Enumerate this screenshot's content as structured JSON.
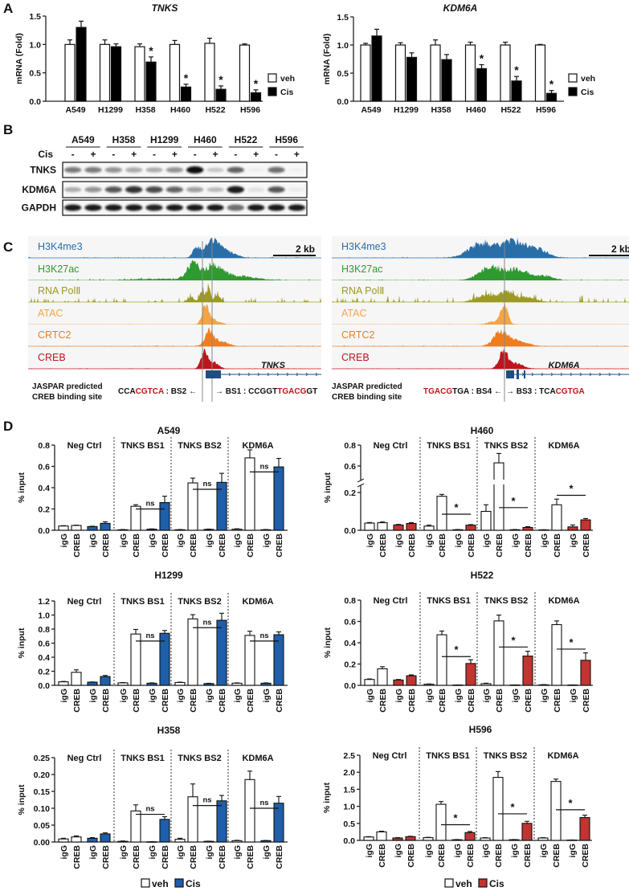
{
  "panel_labels": {
    "A": "A",
    "B": "B",
    "C": "C",
    "D": "D"
  },
  "colors": {
    "veh": "#ffffff",
    "cis_panelA": "#000000",
    "cis_blue": "#1f5ea8",
    "cis_red": "#c03530",
    "motif_red": "#c0141c"
  },
  "chart_data": [
    {
      "type": "bar",
      "title": "TNKS",
      "ylabel": "mRNA (Fold)",
      "ylim": [
        0,
        1.5
      ],
      "yticks": [
        0,
        0.5,
        1.0,
        1.5
      ],
      "ytick_labels": [
        "0.0",
        "0.5",
        "1.0",
        "1.5"
      ],
      "categories": [
        "A549",
        "H1299",
        "H358",
        "H460",
        "H522",
        "H596"
      ],
      "series": [
        {
          "name": "veh",
          "color": "#ffffff",
          "values": [
            1.0,
            1.0,
            0.96,
            1.0,
            1.02,
            0.99
          ],
          "errors": [
            0.08,
            0.08,
            0.05,
            0.07,
            0.09,
            0.02
          ]
        },
        {
          "name": "Cis",
          "color": "#000000",
          "values": [
            1.3,
            0.96,
            0.69,
            0.25,
            0.21,
            0.15
          ],
          "errors": [
            0.11,
            0.05,
            0.09,
            0.05,
            0.06,
            0.05
          ]
        }
      ],
      "significance": [
        "",
        "",
        "*",
        "*",
        "*",
        "*"
      ],
      "legend_position": "right"
    },
    {
      "type": "bar",
      "title": "KDM6A",
      "ylabel": "mRNA (Fold)",
      "ylim": [
        0,
        1.5
      ],
      "yticks": [
        0,
        0.5,
        1.0,
        1.5
      ],
      "ytick_labels": [
        "0.0",
        "0.5",
        "1.0",
        "1.5"
      ],
      "categories": [
        "A549",
        "H1299",
        "H358",
        "H460",
        "H522",
        "H596"
      ],
      "series": [
        {
          "name": "veh",
          "color": "#ffffff",
          "values": [
            1.0,
            1.0,
            1.0,
            1.0,
            1.0,
            1.0
          ],
          "errors": [
            0.03,
            0.04,
            0.09,
            0.05,
            0.05,
            0.01
          ]
        },
        {
          "name": "Cis",
          "color": "#000000",
          "values": [
            1.16,
            0.78,
            0.74,
            0.58,
            0.36,
            0.14
          ],
          "errors": [
            0.12,
            0.08,
            0.09,
            0.07,
            0.08,
            0.05
          ]
        }
      ],
      "significance": [
        "",
        "",
        "",
        "*",
        "*",
        "*"
      ],
      "legend_position": "right"
    },
    {
      "type": "bar",
      "title": "A549",
      "ylabel": "% input",
      "ylim": [
        0,
        0.8
      ],
      "yticks": [
        0,
        0.2,
        0.4,
        0.6,
        0.8
      ],
      "ytick_labels": [
        "0.0",
        "0.2",
        "0.4",
        "0.6",
        "0.8"
      ],
      "groups": [
        "Neg Ctrl",
        "TNKS BS1",
        "TNKS BS2",
        "KDM6A"
      ],
      "bar_labels": [
        "igG",
        "CREB"
      ],
      "series": [
        {
          "name": "veh",
          "color": "#ffffff",
          "values": [
            [
              0.04,
              0.045
            ],
            [
              0.005,
              0.225
            ],
            [
              0.005,
              0.445
            ],
            [
              0.01,
              0.68
            ]
          ],
          "errors": [
            [
              0.003,
              0.003
            ],
            [
              0.002,
              0.015
            ],
            [
              0.002,
              0.045
            ],
            [
              0.004,
              0.075
            ]
          ]
        },
        {
          "name": "Cis",
          "color": "#1f5ea8",
          "values": [
            [
              0.035,
              0.065
            ],
            [
              0.01,
              0.26
            ],
            [
              0.008,
              0.45
            ],
            [
              0.005,
              0.595
            ]
          ],
          "errors": [
            [
              0.003,
              0.015
            ],
            [
              0.003,
              0.06
            ],
            [
              0.003,
              0.085
            ],
            [
              0.002,
              0.08
            ]
          ]
        }
      ],
      "comparisons": [
        {
          "group": "TNKS BS1",
          "label": "ns",
          "y": 0.2
        },
        {
          "group": "TNKS BS2",
          "label": "ns",
          "y": 0.385
        },
        {
          "group": "KDM6A",
          "label": "ns",
          "y": 0.548
        }
      ]
    },
    {
      "type": "bar",
      "title": "H460",
      "ylabel": "% input",
      "ylim": [
        0,
        0.8
      ],
      "axis_break": [
        0.2,
        0.5
      ],
      "yticks": [
        0,
        0.2,
        0.6,
        0.8
      ],
      "ytick_labels": [
        "0.0",
        "0.2",
        "0.6",
        "0.8"
      ],
      "groups": [
        "Neg Ctrl",
        "TNKS BS1",
        "TNKS BS2",
        "KDM6A"
      ],
      "bar_labels": [
        "igG",
        "CREB"
      ],
      "series": [
        {
          "name": "veh",
          "color": "#ffffff",
          "values": [
            [
              0.038,
              0.04
            ],
            [
              0.022,
              0.18
            ],
            [
              0.1,
              0.63
            ],
            [
              0.002,
              0.135
            ]
          ],
          "errors": [
            [
              0.003,
              0.004
            ],
            [
              0.005,
              0.01
            ],
            [
              0.035,
              0.09
            ],
            [
              0.001,
              0.03
            ]
          ]
        },
        {
          "name": "Cis",
          "color": "#c03530",
          "values": [
            [
              0.028,
              0.036
            ],
            [
              0.003,
              0.027
            ],
            [
              0.003,
              0.015
            ],
            [
              0.018,
              0.055
            ]
          ],
          "errors": [
            [
              0.003,
              0.004
            ],
            [
              0.001,
              0.003
            ],
            [
              0.001,
              0.004
            ],
            [
              0.01,
              0.007
            ]
          ]
        }
      ],
      "comparisons": [
        {
          "group": "TNKS BS1",
          "label": "*",
          "y": 0.085
        },
        {
          "group": "TNKS BS2",
          "label": "*",
          "y": 0.12
        },
        {
          "group": "KDM6A",
          "label": "*",
          "y": 0.185
        }
      ]
    },
    {
      "type": "bar",
      "title": "H1299",
      "ylabel": "% input",
      "ylim": [
        0,
        1.2
      ],
      "yticks": [
        0,
        0.2,
        0.4,
        0.6,
        0.8,
        1.0,
        1.2
      ],
      "ytick_labels": [
        "0.0",
        "0.2",
        "0.4",
        "0.6",
        "0.8",
        "1.0",
        "1.2"
      ],
      "groups": [
        "Neg Ctrl",
        "TNKS BS1",
        "TNKS BS2",
        "KDM6A"
      ],
      "bar_labels": [
        "igG",
        "CREB"
      ],
      "series": [
        {
          "name": "veh",
          "color": "#ffffff",
          "values": [
            [
              0.05,
              0.185
            ],
            [
              0.035,
              0.73
            ],
            [
              0.04,
              0.945
            ],
            [
              0.03,
              0.71
            ]
          ],
          "errors": [
            [
              0.005,
              0.035
            ],
            [
              0.005,
              0.065
            ],
            [
              0.005,
              0.06
            ],
            [
              0.005,
              0.06
            ]
          ]
        },
        {
          "name": "Cis",
          "color": "#1f5ea8",
          "values": [
            [
              0.045,
              0.125
            ],
            [
              0.03,
              0.74
            ],
            [
              0.025,
              0.925
            ],
            [
              0.03,
              0.72
            ]
          ],
          "errors": [
            [
              0.003,
              0.015
            ],
            [
              0.005,
              0.04
            ],
            [
              0.004,
              0.1
            ],
            [
              0.005,
              0.04
            ]
          ]
        }
      ],
      "comparisons": [
        {
          "group": "TNKS BS1",
          "label": "ns",
          "y": 0.63
        },
        {
          "group": "TNKS BS2",
          "label": "ns",
          "y": 0.82
        },
        {
          "group": "KDM6A",
          "label": "ns",
          "y": 0.63
        }
      ]
    },
    {
      "type": "bar",
      "title": "H522",
      "ylabel": "% input",
      "ylim": [
        0,
        0.8
      ],
      "yticks": [
        0,
        0.2,
        0.4,
        0.6,
        0.8
      ],
      "ytick_labels": [
        "0.0",
        "0.2",
        "0.4",
        "0.6",
        "0.8"
      ],
      "groups": [
        "Neg Ctrl",
        "TNKS BS1",
        "TNKS BS2",
        "KDM6A"
      ],
      "bar_labels": [
        "igG",
        "CREB"
      ],
      "series": [
        {
          "name": "veh",
          "color": "#ffffff",
          "values": [
            [
              0.055,
              0.155
            ],
            [
              0.01,
              0.475
            ],
            [
              0.015,
              0.605
            ],
            [
              0.005,
              0.57
            ]
          ],
          "errors": [
            [
              0.005,
              0.02
            ],
            [
              0.003,
              0.035
            ],
            [
              0.005,
              0.055
            ],
            [
              0.002,
              0.035
            ]
          ]
        },
        {
          "name": "Cis",
          "color": "#c03530",
          "values": [
            [
              0.05,
              0.09
            ],
            [
              0.003,
              0.205
            ],
            [
              0.003,
              0.275
            ],
            [
              0.003,
              0.235
            ]
          ],
          "errors": [
            [
              0.005,
              0.008
            ],
            [
              0.001,
              0.035
            ],
            [
              0.001,
              0.045
            ],
            [
              0.001,
              0.07
            ]
          ]
        }
      ],
      "comparisons": [
        {
          "group": "TNKS BS1",
          "label": "*",
          "y": 0.27
        },
        {
          "group": "TNKS BS2",
          "label": "*",
          "y": 0.36
        },
        {
          "group": "KDM6A",
          "label": "*",
          "y": 0.34
        }
      ]
    },
    {
      "type": "bar",
      "title": "H358",
      "ylabel": "% input",
      "ylim": [
        0,
        0.25
      ],
      "yticks": [
        0,
        0.05,
        0.1,
        0.15,
        0.2,
        0.25
      ],
      "ytick_labels": [
        "0.00",
        "0.05",
        "0.10",
        "0.15",
        "0.20",
        "0.25"
      ],
      "groups": [
        "Neg Ctrl",
        "TNKS BS1",
        "TNKS BS2",
        "KDM6A"
      ],
      "bar_labels": [
        "igG",
        "CREB"
      ],
      "series": [
        {
          "name": "veh",
          "color": "#ffffff",
          "values": [
            [
              0.009,
              0.015
            ],
            [
              0.002,
              0.092
            ],
            [
              0.008,
              0.134
            ],
            [
              0.004,
              0.185
            ]
          ],
          "errors": [
            [
              0.002,
              0.003
            ],
            [
              0.001,
              0.018
            ],
            [
              0.003,
              0.038
            ],
            [
              0.001,
              0.025
            ]
          ]
        },
        {
          "name": "Cis",
          "color": "#1f5ea8",
          "values": [
            [
              0.011,
              0.024
            ],
            [
              0.0005,
              0.067
            ],
            [
              0.002,
              0.122
            ],
            [
              0.004,
              0.115
            ]
          ],
          "errors": [
            [
              0.002,
              0.003
            ],
            [
              0.0003,
              0.008
            ],
            [
              0.0005,
              0.016
            ],
            [
              0.0005,
              0.02
            ]
          ]
        }
      ],
      "comparisons": [
        {
          "group": "TNKS BS1",
          "label": "ns",
          "y": 0.082
        },
        {
          "group": "TNKS BS2",
          "label": "ns",
          "y": 0.108
        },
        {
          "group": "KDM6A",
          "label": "ns",
          "y": 0.1
        }
      ]
    },
    {
      "type": "bar",
      "title": "H596",
      "ylabel": "% input",
      "ylim": [
        0,
        2.5
      ],
      "yticks": [
        0,
        0.5,
        1.0,
        1.5,
        2.0,
        2.5
      ],
      "ytick_labels": [
        "0.0",
        "0.5",
        "1.0",
        "1.5",
        "2.0",
        "2.5"
      ],
      "groups": [
        "Neg Ctrl",
        "TNKS BS1",
        "TNKS BS2",
        "KDM6A"
      ],
      "bar_labels": [
        "igG",
        "CREB"
      ],
      "series": [
        {
          "name": "veh",
          "color": "#ffffff",
          "values": [
            [
              0.1,
              0.25
            ],
            [
              0.08,
              1.06
            ],
            [
              0.07,
              1.85
            ],
            [
              0.07,
              1.73
            ]
          ],
          "errors": [
            [
              0.01,
              0.02
            ],
            [
              0.01,
              0.08
            ],
            [
              0.01,
              0.17
            ],
            [
              0.01,
              0.07
            ]
          ]
        },
        {
          "name": "Cis",
          "color": "#c03530",
          "values": [
            [
              0.07,
              0.11
            ],
            [
              0.02,
              0.23
            ],
            [
              0.02,
              0.5
            ],
            [
              0.01,
              0.67
            ]
          ],
          "errors": [
            [
              0.01,
              0.01
            ],
            [
              0.005,
              0.03
            ],
            [
              0.005,
              0.06
            ],
            [
              0.003,
              0.07
            ]
          ]
        }
      ],
      "comparisons": [
        {
          "group": "TNKS BS1",
          "label": "*",
          "y": 0.46
        },
        {
          "group": "TNKS BS2",
          "label": "*",
          "y": 0.78
        },
        {
          "group": "KDM6A",
          "label": "*",
          "y": 0.9
        }
      ]
    }
  ],
  "western_blot": {
    "cell_lines": [
      "A549",
      "H358",
      "H1299",
      "H460",
      "H522",
      "H596"
    ],
    "treatment_label": "Cis",
    "treatment_signs": [
      "-",
      "+"
    ],
    "rows": [
      {
        "name": "TNKS",
        "intensities": [
          0.55,
          0.55,
          0.45,
          0.35,
          0.3,
          0.45,
          1.0,
          0.2,
          0.65,
          0.04,
          0.6,
          0.03
        ]
      },
      {
        "name": "KDM6A",
        "intensities": [
          0.3,
          0.45,
          0.7,
          0.85,
          0.75,
          0.65,
          0.4,
          0.25,
          0.95,
          0.1,
          0.7,
          0.05
        ]
      },
      {
        "name": "GAPDH",
        "intensities": [
          0.95,
          0.95,
          0.95,
          0.95,
          0.9,
          0.95,
          0.95,
          0.95,
          0.6,
          0.95,
          0.95,
          0.95
        ]
      }
    ]
  },
  "genome_tracks": {
    "tracks": [
      {
        "name": "H3K4me3",
        "color": "#2a6ea8"
      },
      {
        "name": "H3K27ac",
        "color": "#2f9a2f"
      },
      {
        "name": "RNA PolⅡ",
        "color": "#9c9a22"
      },
      {
        "name": "ATAC",
        "color": "#f3a545"
      },
      {
        "name": "CRTC2",
        "color": "#ef7d1f"
      },
      {
        "name": "CREB",
        "color": "#c0141c"
      }
    ],
    "scale_bar": "2 kb",
    "genes": [
      "TNKS",
      "KDM6A"
    ],
    "jaspar_label": [
      "JASPAR predicted",
      "CREB binding site"
    ],
    "sites": [
      [
        {
          "t": "CCA",
          "red": false
        },
        {
          "t": "CGTCA",
          "red": true
        },
        {
          "t": " : BS2 ←",
          "red": false
        }
      ],
      [
        {
          "t": "→ BS1 : CCGGT",
          "red": false
        },
        {
          "t": "TGACG",
          "red": true
        },
        {
          "t": "GT",
          "red": false
        }
      ],
      [
        {
          "t": "TGACG",
          "red": true
        },
        {
          "t": "TGA : BS4 ←",
          "red": false
        }
      ],
      [
        {
          "t": "→ BS3 : TCA",
          "red": false
        },
        {
          "t": "CGTGA",
          "red": true
        }
      ]
    ]
  },
  "legend_D": {
    "veh": "veh",
    "cis": "Cis"
  }
}
